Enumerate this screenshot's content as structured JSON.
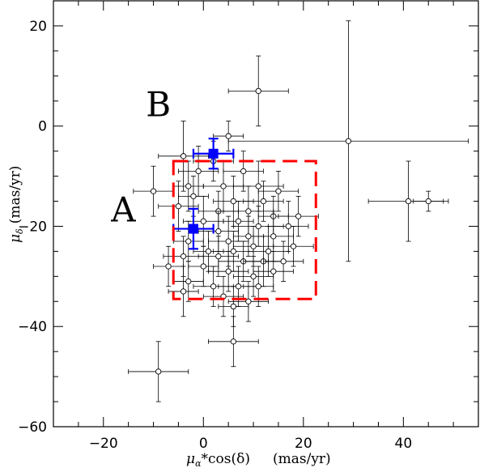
{
  "chart_data": {
    "type": "scatter",
    "xlabel_parts": {
      "mu": "μ",
      "sub_alpha": "α",
      "rest": "*cos(δ)",
      "units": "(mas/yr)"
    },
    "ylabel_parts": {
      "mu": "μ",
      "sub_delta": "δ",
      "units": "(mas/yr)"
    },
    "xlim": [
      -30,
      55
    ],
    "ylim": [
      -60,
      25
    ],
    "xticks": [
      -20,
      0,
      20,
      40
    ],
    "yticks": [
      20,
      0,
      -20,
      -40,
      -60
    ],
    "region_labels": [
      {
        "text": "A",
        "x": -16,
        "y": -19
      },
      {
        "text": "B",
        "x": -9,
        "y": 2
      }
    ],
    "box": {
      "x0": -6,
      "x1": 22.5,
      "y0": -34.5,
      "y1": -7,
      "color": "#ff0000",
      "style": "dashed"
    },
    "series": [
      {
        "marker": "open-circle",
        "color": "#000000",
        "points": [
          {
            "x": 11,
            "y": 7,
            "ex": 6,
            "ey": 7
          },
          {
            "x": 29,
            "y": -3,
            "ex": 24,
            "ey": 24
          },
          {
            "x": 41,
            "y": -15,
            "ex": 8,
            "ey": 8
          },
          {
            "x": 45,
            "y": -15,
            "ex": 3,
            "ey": 2
          },
          {
            "x": -9,
            "y": -49,
            "ex": 6,
            "ey": 6
          },
          {
            "x": 6,
            "y": -43,
            "ex": 5,
            "ey": 5
          },
          {
            "x": 5,
            "y": -2,
            "ex": 3,
            "ey": 3
          },
          {
            "x": -4,
            "y": -6,
            "ex": 5,
            "ey": 7
          },
          {
            "x": 2,
            "y": -7,
            "ex": 4,
            "ey": 4
          },
          {
            "x": -1,
            "y": -9,
            "ex": 4,
            "ey": 5
          },
          {
            "x": 8,
            "y": -9,
            "ex": 4,
            "ey": 4
          },
          {
            "x": -10,
            "y": -13,
            "ex": 4,
            "ey": 5
          },
          {
            "x": -3,
            "y": -12,
            "ex": 3,
            "ey": 5
          },
          {
            "x": 4,
            "y": -12,
            "ex": 4,
            "ey": 5
          },
          {
            "x": 11,
            "y": -12,
            "ex": 5,
            "ey": 5
          },
          {
            "x": 15,
            "y": -13,
            "ex": 4,
            "ey": 4
          },
          {
            "x": -2,
            "y": -14,
            "ex": 3,
            "ey": 4
          },
          {
            "x": 6,
            "y": -15,
            "ex": 4,
            "ey": 5
          },
          {
            "x": 12,
            "y": -15,
            "ex": 4,
            "ey": 4
          },
          {
            "x": -5,
            "y": -16,
            "ex": 4,
            "ey": 5
          },
          {
            "x": 3,
            "y": -17,
            "ex": 4,
            "ey": 4
          },
          {
            "x": 9,
            "y": -17,
            "ex": 5,
            "ey": 5
          },
          {
            "x": 14,
            "y": -18,
            "ex": 3,
            "ey": 4
          },
          {
            "x": 19,
            "y": -18,
            "ex": 4,
            "ey": 4
          },
          {
            "x": 0,
            "y": -19,
            "ex": 4,
            "ey": 5
          },
          {
            "x": 7,
            "y": -19,
            "ex": 3,
            "ey": 4
          },
          {
            "x": 11,
            "y": -20,
            "ex": 5,
            "ey": 4
          },
          {
            "x": 17,
            "y": -20,
            "ex": 4,
            "ey": 5
          },
          {
            "x": 3,
            "y": -21,
            "ex": 4,
            "ey": 4
          },
          {
            "x": 9,
            "y": -22,
            "ex": 3,
            "ey": 4
          },
          {
            "x": 14,
            "y": -22,
            "ex": 4,
            "ey": 5
          },
          {
            "x": -3,
            "y": -23,
            "ex": 3,
            "ey": 4
          },
          {
            "x": 5,
            "y": -23,
            "ex": 4,
            "ey": 5
          },
          {
            "x": 10,
            "y": -24,
            "ex": 4,
            "ey": 4
          },
          {
            "x": 1,
            "y": -25,
            "ex": 3,
            "ey": 4
          },
          {
            "x": 6,
            "y": -25,
            "ex": 4,
            "ey": 4
          },
          {
            "x": 13,
            "y": -25,
            "ex": 4,
            "ey": 5
          },
          {
            "x": 18,
            "y": -24,
            "ex": 4,
            "ey": 4
          },
          {
            "x": -4,
            "y": -26,
            "ex": 4,
            "ey": 4
          },
          {
            "x": 3,
            "y": -26,
            "ex": 4,
            "ey": 4
          },
          {
            "x": 8,
            "y": -27,
            "ex": 5,
            "ey": 4
          },
          {
            "x": 12,
            "y": -27,
            "ex": 4,
            "ey": 5
          },
          {
            "x": 16,
            "y": -27,
            "ex": 4,
            "ey": 4
          },
          {
            "x": -7,
            "y": -28,
            "ex": 3,
            "ey": 4
          },
          {
            "x": 0,
            "y": -28,
            "ex": 3,
            "ey": 4
          },
          {
            "x": 5,
            "y": -29,
            "ex": 4,
            "ey": 4
          },
          {
            "x": 10,
            "y": -30,
            "ex": 4,
            "ey": 4
          },
          {
            "x": 14,
            "y": -29,
            "ex": 4,
            "ey": 4
          },
          {
            "x": -3,
            "y": -31,
            "ex": 3,
            "ey": 4
          },
          {
            "x": 2,
            "y": -32,
            "ex": 4,
            "ey": 4
          },
          {
            "x": 7,
            "y": -32,
            "ex": 4,
            "ey": 4
          },
          {
            "x": 11,
            "y": -32,
            "ex": 3,
            "ey": 4
          },
          {
            "x": -4,
            "y": -33,
            "ex": 3,
            "ey": 5
          },
          {
            "x": 4,
            "y": -34,
            "ex": 4,
            "ey": 4
          },
          {
            "x": 9,
            "y": -35,
            "ex": 4,
            "ey": 4
          },
          {
            "x": 6,
            "y": -36,
            "ex": 3,
            "ey": 4
          }
        ]
      },
      {
        "marker": "filled-square",
        "color": "#0000ff",
        "points": [
          {
            "x": 2,
            "y": -5.5,
            "ex": 4,
            "ey": 3
          },
          {
            "x": -2,
            "y": -20.5,
            "ex": 4,
            "ey": 4
          }
        ]
      }
    ]
  }
}
